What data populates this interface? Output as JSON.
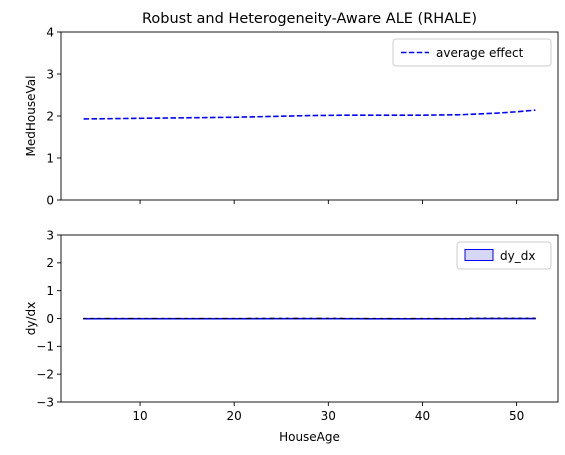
{
  "chart_data": [
    {
      "type": "line",
      "title": "Robust and Heterogeneity-Aware ALE (RHALE)",
      "xlabel": "",
      "ylabel": "MedHouseVal",
      "xlim": [
        1.6,
        54.4
      ],
      "ylim": [
        0,
        4
      ],
      "yticks": [
        0,
        1,
        2,
        3,
        4
      ],
      "xticks": [
        10,
        20,
        30,
        40,
        50
      ],
      "show_xticklabels": false,
      "grid": false,
      "legend": "top-right",
      "series": [
        {
          "name": "average effect",
          "color": "#0000ff",
          "style": "dashed",
          "x": [
            4,
            8,
            12,
            16,
            20,
            24,
            28,
            32,
            36,
            40,
            44,
            46,
            48,
            50,
            52
          ],
          "y": [
            1.93,
            1.94,
            1.95,
            1.96,
            1.97,
            1.99,
            2.01,
            2.02,
            2.02,
            2.02,
            2.03,
            2.05,
            2.07,
            2.1,
            2.14
          ]
        }
      ]
    },
    {
      "type": "area",
      "title": "",
      "xlabel": "HouseAge",
      "ylabel": "dy/dx",
      "xlim": [
        1.6,
        54.4
      ],
      "ylim": [
        -3,
        3
      ],
      "yticks": [
        -3,
        -2,
        -1,
        0,
        1,
        2,
        3
      ],
      "yticklabels": [
        "−3",
        "−2",
        "−1",
        "0",
        "1",
        "2",
        "3"
      ],
      "xticks": [
        10,
        20,
        30,
        40,
        50
      ],
      "show_xticklabels": true,
      "grid": false,
      "legend": "top-right",
      "series": [
        {
          "name": "dy_dx",
          "color": "#0000ff",
          "fill": "#d6d6f5",
          "bin_edges": [
            4,
            6.5,
            9,
            11.5,
            14,
            16.5,
            19,
            21.5,
            24,
            26.5,
            29,
            31.5,
            34,
            36.5,
            39,
            41.5,
            45,
            52
          ],
          "values": [
            0.003,
            0.003,
            0.003,
            0.003,
            0.003,
            0.003,
            0.003,
            0.004,
            0.005,
            0.005,
            0.005,
            0.003,
            0.001,
            0.0,
            0.001,
            0.001,
            0.008
          ]
        }
      ]
    }
  ]
}
